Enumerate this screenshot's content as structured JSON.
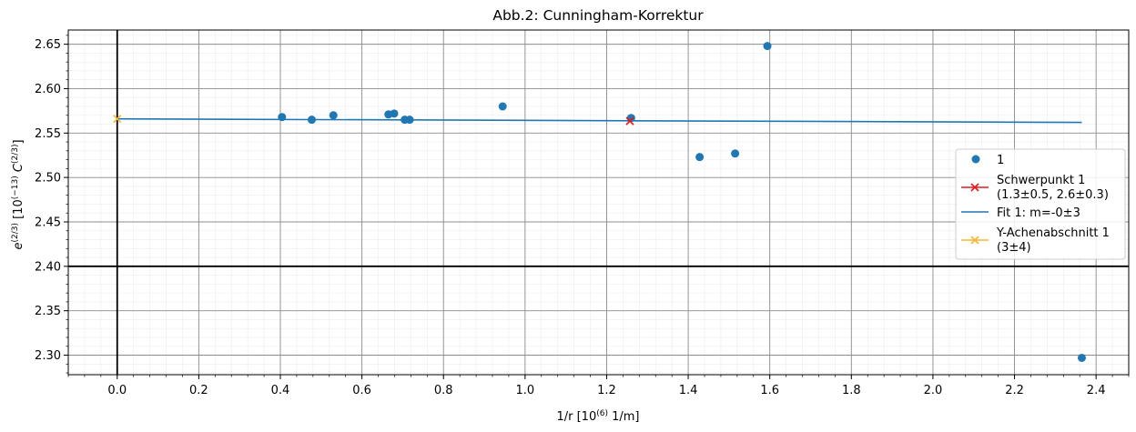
{
  "chart_data": {
    "type": "scatter",
    "title": "Abb.2: Cunningham-Korrektur",
    "xlabel": {
      "base": "1/r [10",
      "sup": "(6)",
      "tail": " 1/m]"
    },
    "ylabel": {
      "base": "e",
      "sup1": "(2/3)",
      "mid": " [10",
      "sup2": "(−13)",
      "mid2": " C",
      "sup3": "(2/3)",
      "tail": "]"
    },
    "xlim": [
      -0.12,
      2.48
    ],
    "ylim": [
      2.278,
      2.666
    ],
    "xticks": [
      "0.0",
      "0.2",
      "0.4",
      "0.6",
      "0.8",
      "1.0",
      "1.2",
      "1.4",
      "1.6",
      "1.8",
      "2.0",
      "2.2",
      "2.4"
    ],
    "xtick_values": [
      0.0,
      0.2,
      0.4,
      0.6,
      0.8,
      1.0,
      1.2,
      1.4,
      1.6,
      1.8,
      2.0,
      2.2,
      2.4
    ],
    "yticks": [
      "2.30",
      "2.35",
      "2.40",
      "2.45",
      "2.50",
      "2.55",
      "2.60",
      "2.65"
    ],
    "ytick_values": [
      2.3,
      2.35,
      2.4,
      2.45,
      2.5,
      2.55,
      2.6,
      2.65
    ],
    "grid": true,
    "reference_lines": {
      "x": 0.0,
      "y": 2.4
    },
    "series": [
      {
        "name": "1",
        "kind": "scatter",
        "color": "#1f77b4",
        "x": [
          0.404,
          0.477,
          0.53,
          0.665,
          0.679,
          0.705,
          0.717,
          0.945,
          1.26,
          1.428,
          1.515,
          1.594,
          2.365
        ],
        "y": [
          2.568,
          2.565,
          2.57,
          2.571,
          2.572,
          2.565,
          2.565,
          2.58,
          2.567,
          2.523,
          2.527,
          2.648,
          2.297
        ]
      },
      {
        "name": "Schwerpunkt 1",
        "name2": "(1.3±0.5, 2.6±0.3)",
        "kind": "marker-x",
        "color": "#e41a1c",
        "x": [
          1.257
        ],
        "y": [
          2.5635
        ]
      },
      {
        "name": "Fit 1: m=-0±3",
        "kind": "line",
        "color": "#1f77b4",
        "x": [
          0.0,
          2.365
        ],
        "y": [
          2.566,
          2.562
        ]
      },
      {
        "name": "Y-Achenabschnitt 1",
        "name2": "(3±4)",
        "kind": "marker-x",
        "color": "#f5b731",
        "x": [
          0.0
        ],
        "y": [
          2.566
        ]
      }
    ],
    "legend_position": "right"
  }
}
